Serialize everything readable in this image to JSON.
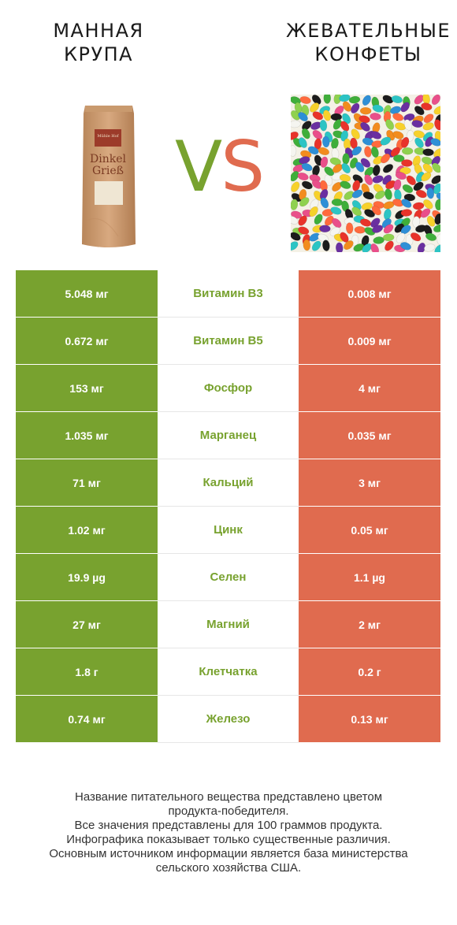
{
  "header": {
    "left_title": "МАННАЯ\nКРУПА",
    "right_title": "ЖЕВАТЕЛЬНЫЕ\nКОНФЕТЫ",
    "vs_v": "V",
    "vs_s": "S"
  },
  "package_label": {
    "brand": "Mühle Hof",
    "line1": "Dinkel",
    "line2": "Grieß"
  },
  "colors": {
    "winner_left": "#78a22f",
    "winner_right": "#e06b4f"
  },
  "rows": [
    {
      "left": "5.048 мг",
      "nutrient": "Витамин B3",
      "right": "0.008 мг"
    },
    {
      "left": "0.672 мг",
      "nutrient": "Витамин B5",
      "right": "0.009 мг"
    },
    {
      "left": "153 мг",
      "nutrient": "Фосфор",
      "right": "4 мг"
    },
    {
      "left": "1.035 мг",
      "nutrient": "Марганец",
      "right": "0.035 мг"
    },
    {
      "left": "71 мг",
      "nutrient": "Кальций",
      "right": "3 мг"
    },
    {
      "left": "1.02 мг",
      "nutrient": "Цинк",
      "right": "0.05 мг"
    },
    {
      "left": "19.9 µg",
      "nutrient": "Селен",
      "right": "1.1 µg"
    },
    {
      "left": "27 мг",
      "nutrient": "Магний",
      "right": "2 мг"
    },
    {
      "left": "1.8 г",
      "nutrient": "Клетчатка",
      "right": "0.2 г"
    },
    {
      "left": "0.74 мг",
      "nutrient": "Железо",
      "right": "0.13 мг"
    }
  ],
  "footer": {
    "line1": "Название питательного вещества представлено цветом",
    "line2": "продукта-победителя.",
    "line3": "Все значения представлены для 100 граммов продукта.",
    "line4": "Инфографика показывает только существенные различия.",
    "line5": "Основным источником информации является база министерства",
    "line6": "сельского хозяйства США."
  }
}
